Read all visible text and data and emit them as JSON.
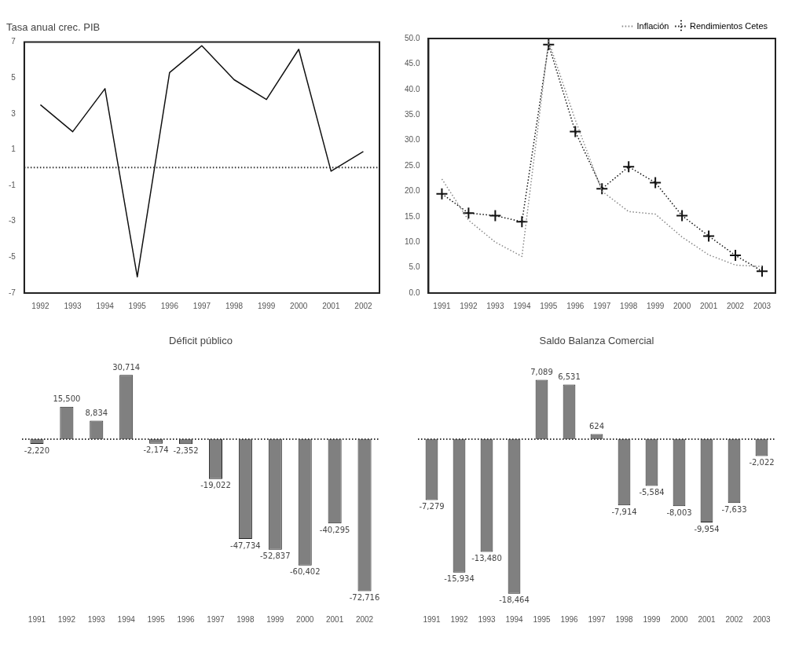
{
  "chart_data": [
    {
      "type": "line",
      "title": "Tasa anual crec. PIB",
      "categories": [
        "1992",
        "1993",
        "1994",
        "1995",
        "1996",
        "1997",
        "1998",
        "1999",
        "2000",
        "2001",
        "2002"
      ],
      "series": [
        {
          "color": "#111111",
          "values": [
            3.5,
            2.0,
            4.4,
            -6.1,
            5.3,
            6.8,
            4.9,
            3.8,
            6.6,
            -0.2,
            0.9
          ]
        }
      ],
      "ylim": [
        -7,
        7
      ],
      "yticks": [
        -7,
        -5,
        -3,
        -1,
        1,
        3,
        5,
        7
      ],
      "grid": false,
      "legend": false,
      "marker": "none",
      "line_style": "solid",
      "ref_lines": [
        {
          "axis": "y",
          "value": 0,
          "line_style": "dotted",
          "color": "#333333"
        }
      ]
    },
    {
      "type": "line",
      "categories": [
        "1991",
        "1992",
        "1993",
        "1994",
        "1995",
        "1996",
        "1997",
        "1998",
        "1999",
        "2000",
        "2001",
        "2002",
        "2003"
      ],
      "series": [
        {
          "name": "Inflación",
          "color": "#888888",
          "marker": "none",
          "values": [
            22.4,
            14.3,
            10.0,
            7.2,
            49.5,
            34.0,
            20.0,
            16.0,
            15.5,
            11.0,
            7.5,
            5.5,
            5.2
          ]
        },
        {
          "name": "Rendimientos Cetes",
          "color": "#111111",
          "marker": "cross",
          "values": [
            19.5,
            15.7,
            15.2,
            14.0,
            48.8,
            31.7,
            20.5,
            24.8,
            21.7,
            15.2,
            11.2,
            7.4,
            4.3
          ]
        }
      ],
      "ylim": [
        0,
        50
      ],
      "yticks": [
        {
          "value": 0,
          "label": "0.0"
        },
        {
          "value": 5,
          "label": "5.0"
        },
        {
          "value": 10,
          "label": "10.0"
        },
        {
          "value": 15,
          "label": "15.0"
        },
        {
          "value": 20,
          "label": "20.0"
        },
        {
          "value": 25,
          "label": "25.0"
        },
        {
          "value": 30,
          "label": "30.0"
        },
        {
          "value": 35,
          "label": "35.0"
        },
        {
          "value": 40,
          "label": "40.0"
        },
        {
          "value": 45,
          "label": "45.0"
        },
        {
          "value": 50,
          "label": "50.0"
        }
      ],
      "grid": false,
      "legend": "top right",
      "line_style": "dotted"
    },
    {
      "type": "bar",
      "title": "Déficit público",
      "categories": [
        "1991",
        "1992",
        "1993",
        "1994",
        "1995",
        "1996",
        "1997",
        "1998",
        "1999",
        "2000",
        "2001",
        "2002"
      ],
      "series": [
        {
          "color": "#808080",
          "values": [
            -2220,
            15500,
            8834,
            30714,
            -2174,
            -2352,
            -19022,
            -47734,
            -52837,
            -60402,
            -40295,
            -72716
          ],
          "value_labels": [
            "-2,220",
            "15,500",
            "8,834",
            "30,714",
            "-2,174",
            "-2,352",
            "-19,022",
            "-47,734",
            "-52,837",
            "-60,402",
            "-40,295",
            "-72,716"
          ]
        }
      ],
      "grid": false,
      "legend": false,
      "tick_labels": "x",
      "ref_lines": [
        {
          "axis": "y",
          "value": 0,
          "line_style": "dotted",
          "color": "#333333"
        }
      ]
    },
    {
      "type": "bar",
      "title": "Saldo Balanza Comercial",
      "categories": [
        "1991",
        "1992",
        "1993",
        "1994",
        "1995",
        "1996",
        "1997",
        "1998",
        "1999",
        "2000",
        "2001",
        "2002",
        "2003"
      ],
      "series": [
        {
          "color": "#808080",
          "values": [
            -7279,
            -15934,
            -13480,
            -18464,
            7089,
            6531,
            624,
            -7914,
            -5584,
            -8003,
            -9954,
            -7633,
            -2022
          ],
          "value_labels": [
            "-7,279",
            "-15,934",
            "-13,480",
            "-18,464",
            "7,089",
            "6,531",
            "624",
            "-7,914",
            "-5,584",
            "-8,003",
            "-9,954",
            "-7,633",
            "-2,022"
          ]
        }
      ],
      "grid": false,
      "legend": false,
      "tick_labels": "x",
      "ref_lines": [
        {
          "axis": "y",
          "value": 0,
          "line_style": "dotted",
          "color": "#333333"
        }
      ]
    }
  ]
}
